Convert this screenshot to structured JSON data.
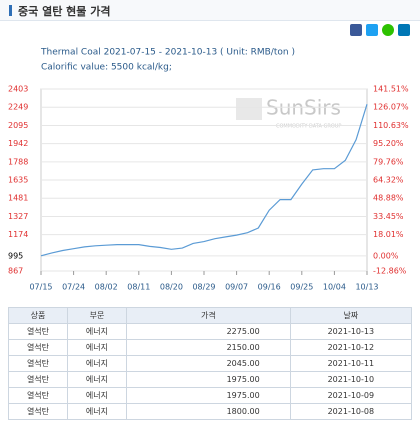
{
  "header": {
    "title": "중국 열탄 현물 가격"
  },
  "chart_data": {
    "type": "line",
    "title": "Thermal Coal 2021-07-15 - 2021-10-13    ( Unit: RMB/ton )",
    "subtitle": "Calorific value: 5500 kcal/kg;",
    "watermark": "SunSirs",
    "watermark_sub": "COMMODITY DATA GROUP",
    "categories": [
      "07/15",
      null,
      null,
      "07/24",
      null,
      null,
      "08/02",
      null,
      null,
      "08/11",
      null,
      null,
      "08/20",
      null,
      null,
      "08/29",
      null,
      null,
      "09/07",
      null,
      null,
      "09/16",
      null,
      null,
      "09/25",
      null,
      null,
      "10/04",
      null,
      null,
      "10/13"
    ],
    "values": [
      995,
      1020,
      1040,
      1055,
      1070,
      1080,
      1085,
      1090,
      1090,
      1090,
      1075,
      1065,
      1050,
      1060,
      1100,
      1115,
      1140,
      1155,
      1170,
      1190,
      1230,
      1380,
      1470,
      1470,
      1600,
      1720,
      1730,
      1730,
      1800,
      1975,
      2275
    ],
    "color": "#5b9bd5",
    "ylim": [
      867,
      2403
    ],
    "yticks": [
      2403,
      2249,
      2095,
      1942,
      1788,
      1635,
      1481,
      1327,
      1174,
      995,
      867
    ],
    "y2lim": [
      -12.86,
      141.51
    ],
    "y2ticks": [
      {
        "value": 141.51,
        "label": "141.51%"
      },
      {
        "value": 126.07,
        "label": "126.07%"
      },
      {
        "value": 110.63,
        "label": "110.63%"
      },
      {
        "value": 95.2,
        "label": "95.20%"
      },
      {
        "value": 79.76,
        "label": "79.76%"
      },
      {
        "value": 64.32,
        "label": "64.32%"
      },
      {
        "value": 48.88,
        "label": "48.88%"
      },
      {
        "value": 33.45,
        "label": "33.45%"
      },
      {
        "value": 18.01,
        "label": "18.01%"
      },
      {
        "value": 0,
        "label": "0.00%"
      },
      {
        "value": -12.86,
        "label": "-12.86%"
      }
    ],
    "tick_color": "#e03030",
    "grid": true
  },
  "table": {
    "columns": [
      "상품",
      "부문",
      "가격",
      "날짜"
    ],
    "rows": [
      [
        "열석탄",
        "에너지",
        "2275.00",
        "2021-10-13"
      ],
      [
        "열석탄",
        "에너지",
        "2150.00",
        "2021-10-12"
      ],
      [
        "열석탄",
        "에너지",
        "2045.00",
        "2021-10-11"
      ],
      [
        "열석탄",
        "에너지",
        "1975.00",
        "2021-10-10"
      ],
      [
        "열석탄",
        "에너지",
        "1975.00",
        "2021-10-09"
      ],
      [
        "열석탄",
        "에너지",
        "1800.00",
        "2021-10-08"
      ]
    ]
  }
}
